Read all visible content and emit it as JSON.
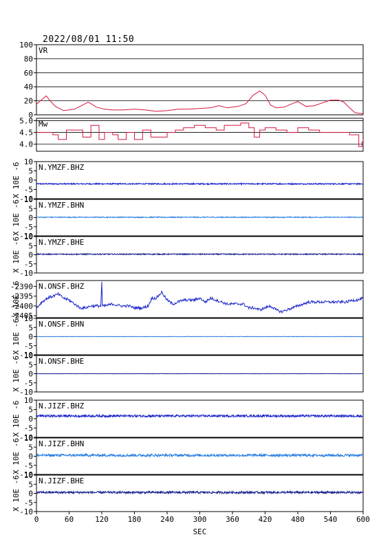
{
  "header": {
    "timestamp": "2022/08/01 11:50"
  },
  "chart_data": {
    "type": "line",
    "xlabel": "SEC",
    "xlim": [
      0,
      600
    ],
    "xticks": [
      "0",
      "60",
      "120",
      "180",
      "240",
      "300",
      "360",
      "420",
      "480",
      "540",
      "600"
    ],
    "panels": [
      {
        "label": "VR",
        "ylabel": "",
        "ylim": [
          0,
          100
        ],
        "yticks": [
          "0",
          "20",
          "40",
          "60",
          "80",
          "100"
        ],
        "grid": true,
        "color": "#d4143c",
        "series": [
          {
            "x": [
              0,
              10,
              18,
              25,
              35,
              50,
              70,
              85,
              95,
              100,
              110,
              125,
              140,
              160,
              180,
              200,
              220,
              240,
              260,
              280,
              300,
              320,
              335,
              350,
              370,
              385,
              398,
              410,
              420,
              430,
              440,
              455,
              470,
              480,
              495,
              510,
              525,
              540,
              555,
              565,
              575,
              585,
              595,
              600
            ],
            "values": [
              15,
              22,
              27,
              20,
              12,
              6,
              8,
              14,
              18,
              16,
              11,
              8,
              7,
              7,
              8,
              7,
              5,
              6,
              8,
              8,
              9,
              10,
              13,
              10,
              12,
              16,
              28,
              34,
              28,
              14,
              10,
              11,
              16,
              19,
              12,
              13,
              17,
              21,
              21,
              18,
              10,
              3,
              2,
              2
            ]
          }
        ]
      },
      {
        "label": "Mw",
        "ylabel": "",
        "ylim": [
          3.7,
          5.1
        ],
        "yticks": [
          "4.0",
          "4.5",
          "5.0"
        ],
        "grid": true,
        "color": "#d4143c",
        "series": [
          {
            "x": [
              0,
              15,
              30,
              40,
              55,
              70,
              85,
              100,
              115,
              125,
              140,
              150,
              165,
              180,
              195,
              210,
              225,
              240,
              255,
              270,
              290,
              310,
              330,
              345,
              360,
              375,
              390,
              400,
              410,
              420,
              440,
              460,
              480,
              500,
              520,
              540,
              560,
              575,
              585,
              592,
              598,
              600
            ],
            "values": [
              4.5,
              4.5,
              4.4,
              4.2,
              4.6,
              4.6,
              4.3,
              4.8,
              4.2,
              4.5,
              4.4,
              4.2,
              4.5,
              4.2,
              4.6,
              4.3,
              4.3,
              4.5,
              4.6,
              4.7,
              4.8,
              4.7,
              4.6,
              4.8,
              4.8,
              4.9,
              4.7,
              4.3,
              4.6,
              4.7,
              4.6,
              4.5,
              4.7,
              4.6,
              4.5,
              4.5,
              4.5,
              4.4,
              4.4,
              3.9,
              4.1,
              4.2
            ]
          }
        ]
      },
      {
        "label": "N.YMZF.BHZ",
        "ylabel": "X 10E -6",
        "ylim": [
          -10,
          10
        ],
        "yticks": [
          "-10",
          "-5",
          "0",
          "5",
          "10"
        ],
        "grid": false,
        "color": "#1a24c8",
        "baseline": -2,
        "noise": 0.35
      },
      {
        "label": "N.YMZF.BHN",
        "ylabel": "X 10E -6",
        "ylim": [
          -10,
          10
        ],
        "yticks": [
          "-10",
          "-5",
          "0",
          "5",
          "10"
        ],
        "grid": false,
        "color": "#2a7ee0",
        "baseline": 0.2,
        "noise": 0.25
      },
      {
        "label": "N.YMZF.BHE",
        "ylabel": "X 10E -6",
        "ylim": [
          -10,
          10
        ],
        "yticks": [
          "-10",
          "-5",
          "0",
          "5",
          "10"
        ],
        "grid": false,
        "color": "#141e8c",
        "baseline": 0.3,
        "noise": 0.3
      },
      {
        "label": "N.ONSF.BHZ",
        "ylabel": "X 10E -6",
        "ylim": [
          -2406,
          -2387
        ],
        "yticks": [
          "-2405",
          "-2400",
          "-2395",
          "-2390"
        ],
        "grid": false,
        "color": "#1a24c8",
        "noise": 0.7,
        "series": [
          {
            "x": [
              0,
              10,
              20,
              30,
              40,
              50,
              60,
              70,
              80,
              90,
              100,
              110,
              118,
              120,
              121,
              125,
              140,
              155,
              170,
              180,
              195,
              205,
              212,
              220,
              230,
              240,
              250,
              260,
              270,
              280,
              290,
              300,
              310,
              320,
              330,
              340,
              350,
              360,
              370,
              380,
              390,
              400,
              410,
              420,
              430,
              440,
              450,
              460,
              470,
              480,
              490,
              500,
              510,
              520,
              530,
              540,
              550,
              560,
              570,
              580,
              590,
              600
            ],
            "values": [
              -2401,
              -2398,
              -2396,
              -2395,
              -2394,
              -2396,
              -2397,
              -2399,
              -2401,
              -2401,
              -2400,
              -2400,
              -2400,
              -2388,
              -2400,
              -2400,
              -2399,
              -2400,
              -2400,
              -2401,
              -2401,
              -2400,
              -2396,
              -2396,
              -2393,
              -2397,
              -2399,
              -2398,
              -2397,
              -2397,
              -2397,
              -2396,
              -2398,
              -2396,
              -2397,
              -2398,
              -2399,
              -2399,
              -2399,
              -2399,
              -2401,
              -2401,
              -2402,
              -2401,
              -2400,
              -2402,
              -2403,
              -2402,
              -2401,
              -2400,
              -2399,
              -2398,
              -2398,
              -2398,
              -2398,
              -2398,
              -2398,
              -2398,
              -2398,
              -2397,
              -2397,
              -2396
            ]
          }
        ]
      },
      {
        "label": "N.ONSF.BHN",
        "ylabel": "X 10E -6",
        "ylim": [
          -10,
          10
        ],
        "yticks": [
          "-10",
          "-5",
          "0",
          "5",
          "10"
        ],
        "grid": false,
        "color": "#2a7ee0",
        "baseline": 0.0,
        "noise": 0.1
      },
      {
        "label": "N.ONSF.BHE",
        "ylabel": "X 10E -6",
        "ylim": [
          -10,
          10
        ],
        "yticks": [
          "-10",
          "-5",
          "0",
          "5",
          "10"
        ],
        "grid": false,
        "color": "#141e8c",
        "baseline": 0.0,
        "noise": 0.08
      },
      {
        "label": "N.JIZF.BHZ",
        "ylabel": "X 10E -6",
        "ylim": [
          -10,
          10
        ],
        "yticks": [
          "-10",
          "-5",
          "0",
          "5",
          "10"
        ],
        "grid": false,
        "color": "#1a24c8",
        "baseline": 1.5,
        "noise": 0.6
      },
      {
        "label": "N.JIZF.BHN",
        "ylabel": "X 10E -6",
        "ylim": [
          -10,
          10
        ],
        "yticks": [
          "-10",
          "-5",
          "0",
          "5",
          "10"
        ],
        "grid": false,
        "color": "#2a7ee0",
        "baseline": 0.5,
        "noise": 0.7
      },
      {
        "label": "N.JIZF.BHE",
        "ylabel": "X 10E -6",
        "ylim": [
          -10,
          10
        ],
        "yticks": [
          "-10",
          "-5",
          "0",
          "5",
          "10"
        ],
        "grid": false,
        "color": "#141e8c",
        "baseline": 0.5,
        "noise": 0.6
      }
    ]
  }
}
